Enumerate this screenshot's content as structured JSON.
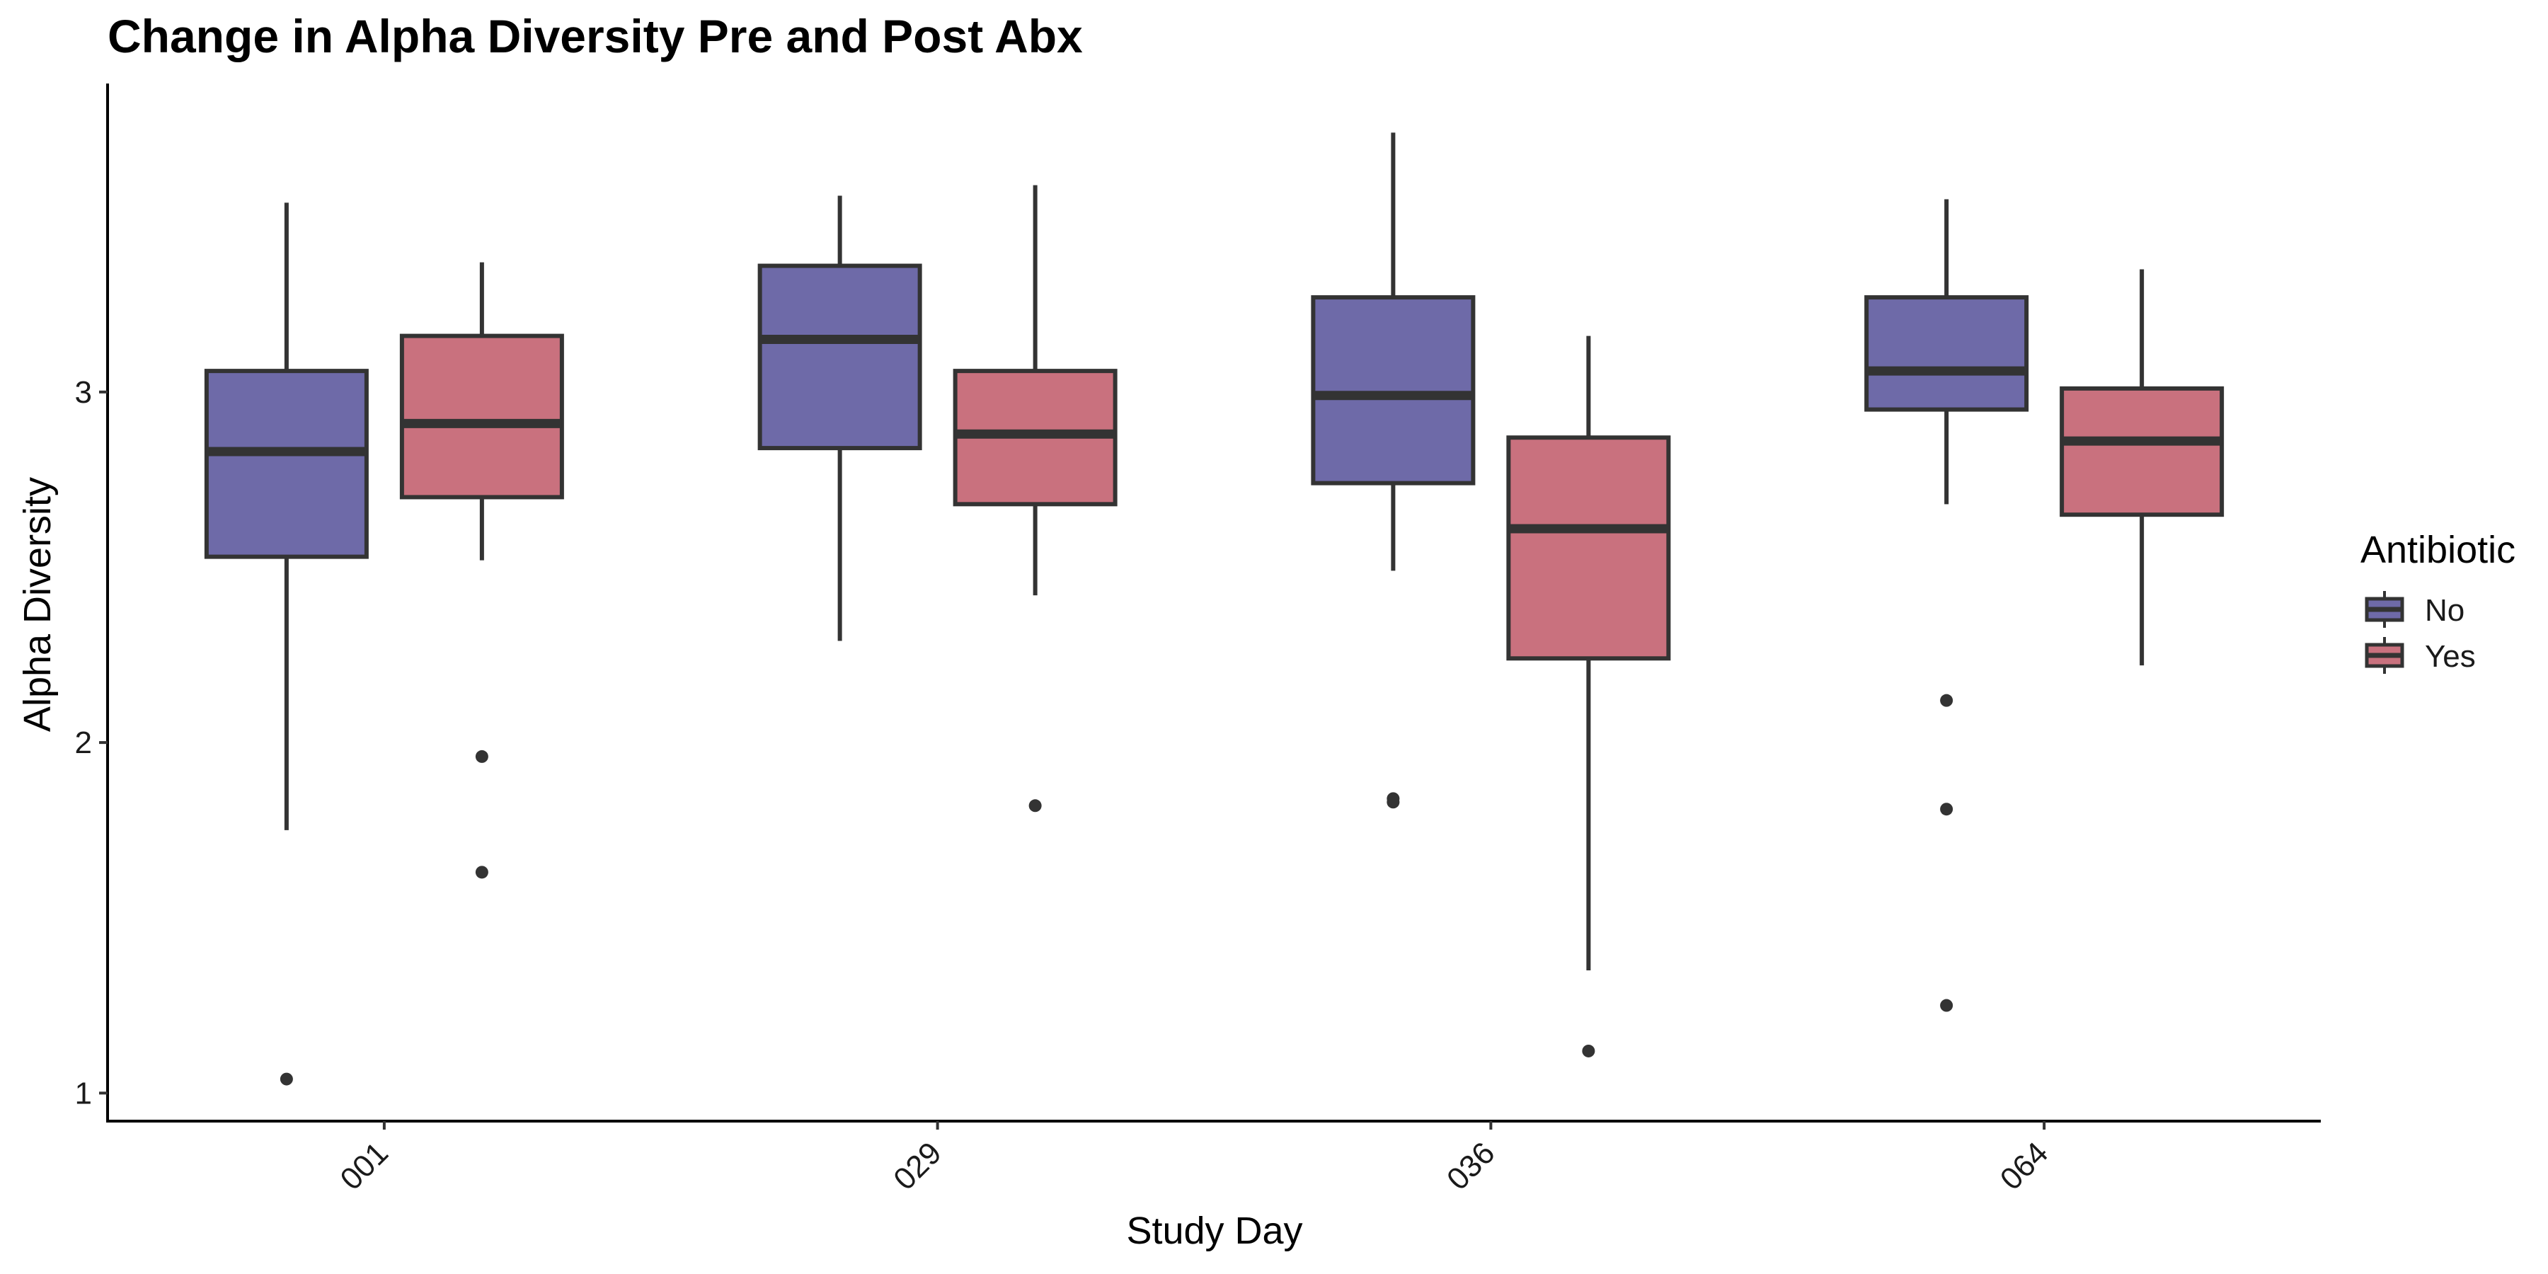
{
  "chart_data": {
    "type": "boxplot",
    "title": "Change in Alpha Diversity Pre and Post Abx",
    "xlabel": "Study Day",
    "ylabel": "Alpha Diversity",
    "categories": [
      "001",
      "029",
      "036",
      "064"
    ],
    "yticks": [
      1,
      2,
      3
    ],
    "ylim": [
      0.92,
      3.88
    ],
    "grid": false,
    "legend": {
      "title": "Antibiotic",
      "position": "right",
      "entries": [
        {
          "label": "No",
          "color": "#6e6aa8"
        },
        {
          "label": "Yes",
          "color": "#c9717e"
        }
      ]
    },
    "series": [
      {
        "name": "No",
        "color": "#6e6aa8",
        "boxes": [
          {
            "category": "001",
            "whisker_low": 1.75,
            "q1": 2.53,
            "median": 2.83,
            "q3": 3.06,
            "whisker_high": 3.54,
            "outliers": [
              1.04
            ]
          },
          {
            "category": "029",
            "whisker_low": 2.29,
            "q1": 2.84,
            "median": 3.15,
            "q3": 3.36,
            "whisker_high": 3.56,
            "outliers": []
          },
          {
            "category": "036",
            "whisker_low": 2.49,
            "q1": 2.74,
            "median": 2.99,
            "q3": 3.27,
            "whisker_high": 3.74,
            "outliers": [
              1.83,
              1.84
            ]
          },
          {
            "category": "064",
            "whisker_low": 2.68,
            "q1": 2.95,
            "median": 3.06,
            "q3": 3.27,
            "whisker_high": 3.55,
            "outliers": [
              2.12,
              1.81,
              1.25
            ]
          }
        ]
      },
      {
        "name": "Yes",
        "color": "#c9717e",
        "boxes": [
          {
            "category": "001",
            "whisker_low": 2.52,
            "q1": 2.7,
            "median": 2.91,
            "q3": 3.16,
            "whisker_high": 3.37,
            "outliers": [
              1.96,
              1.63
            ]
          },
          {
            "category": "029",
            "whisker_low": 2.42,
            "q1": 2.68,
            "median": 2.88,
            "q3": 3.06,
            "whisker_high": 3.59,
            "outliers": [
              1.82
            ]
          },
          {
            "category": "036",
            "whisker_low": 1.35,
            "q1": 2.24,
            "median": 2.61,
            "q3": 2.87,
            "whisker_high": 3.16,
            "outliers": [
              1.12
            ]
          },
          {
            "category": "064",
            "whisker_low": 2.22,
            "q1": 2.65,
            "median": 2.86,
            "q3": 3.01,
            "whisker_high": 3.35,
            "outliers": []
          }
        ]
      }
    ]
  }
}
